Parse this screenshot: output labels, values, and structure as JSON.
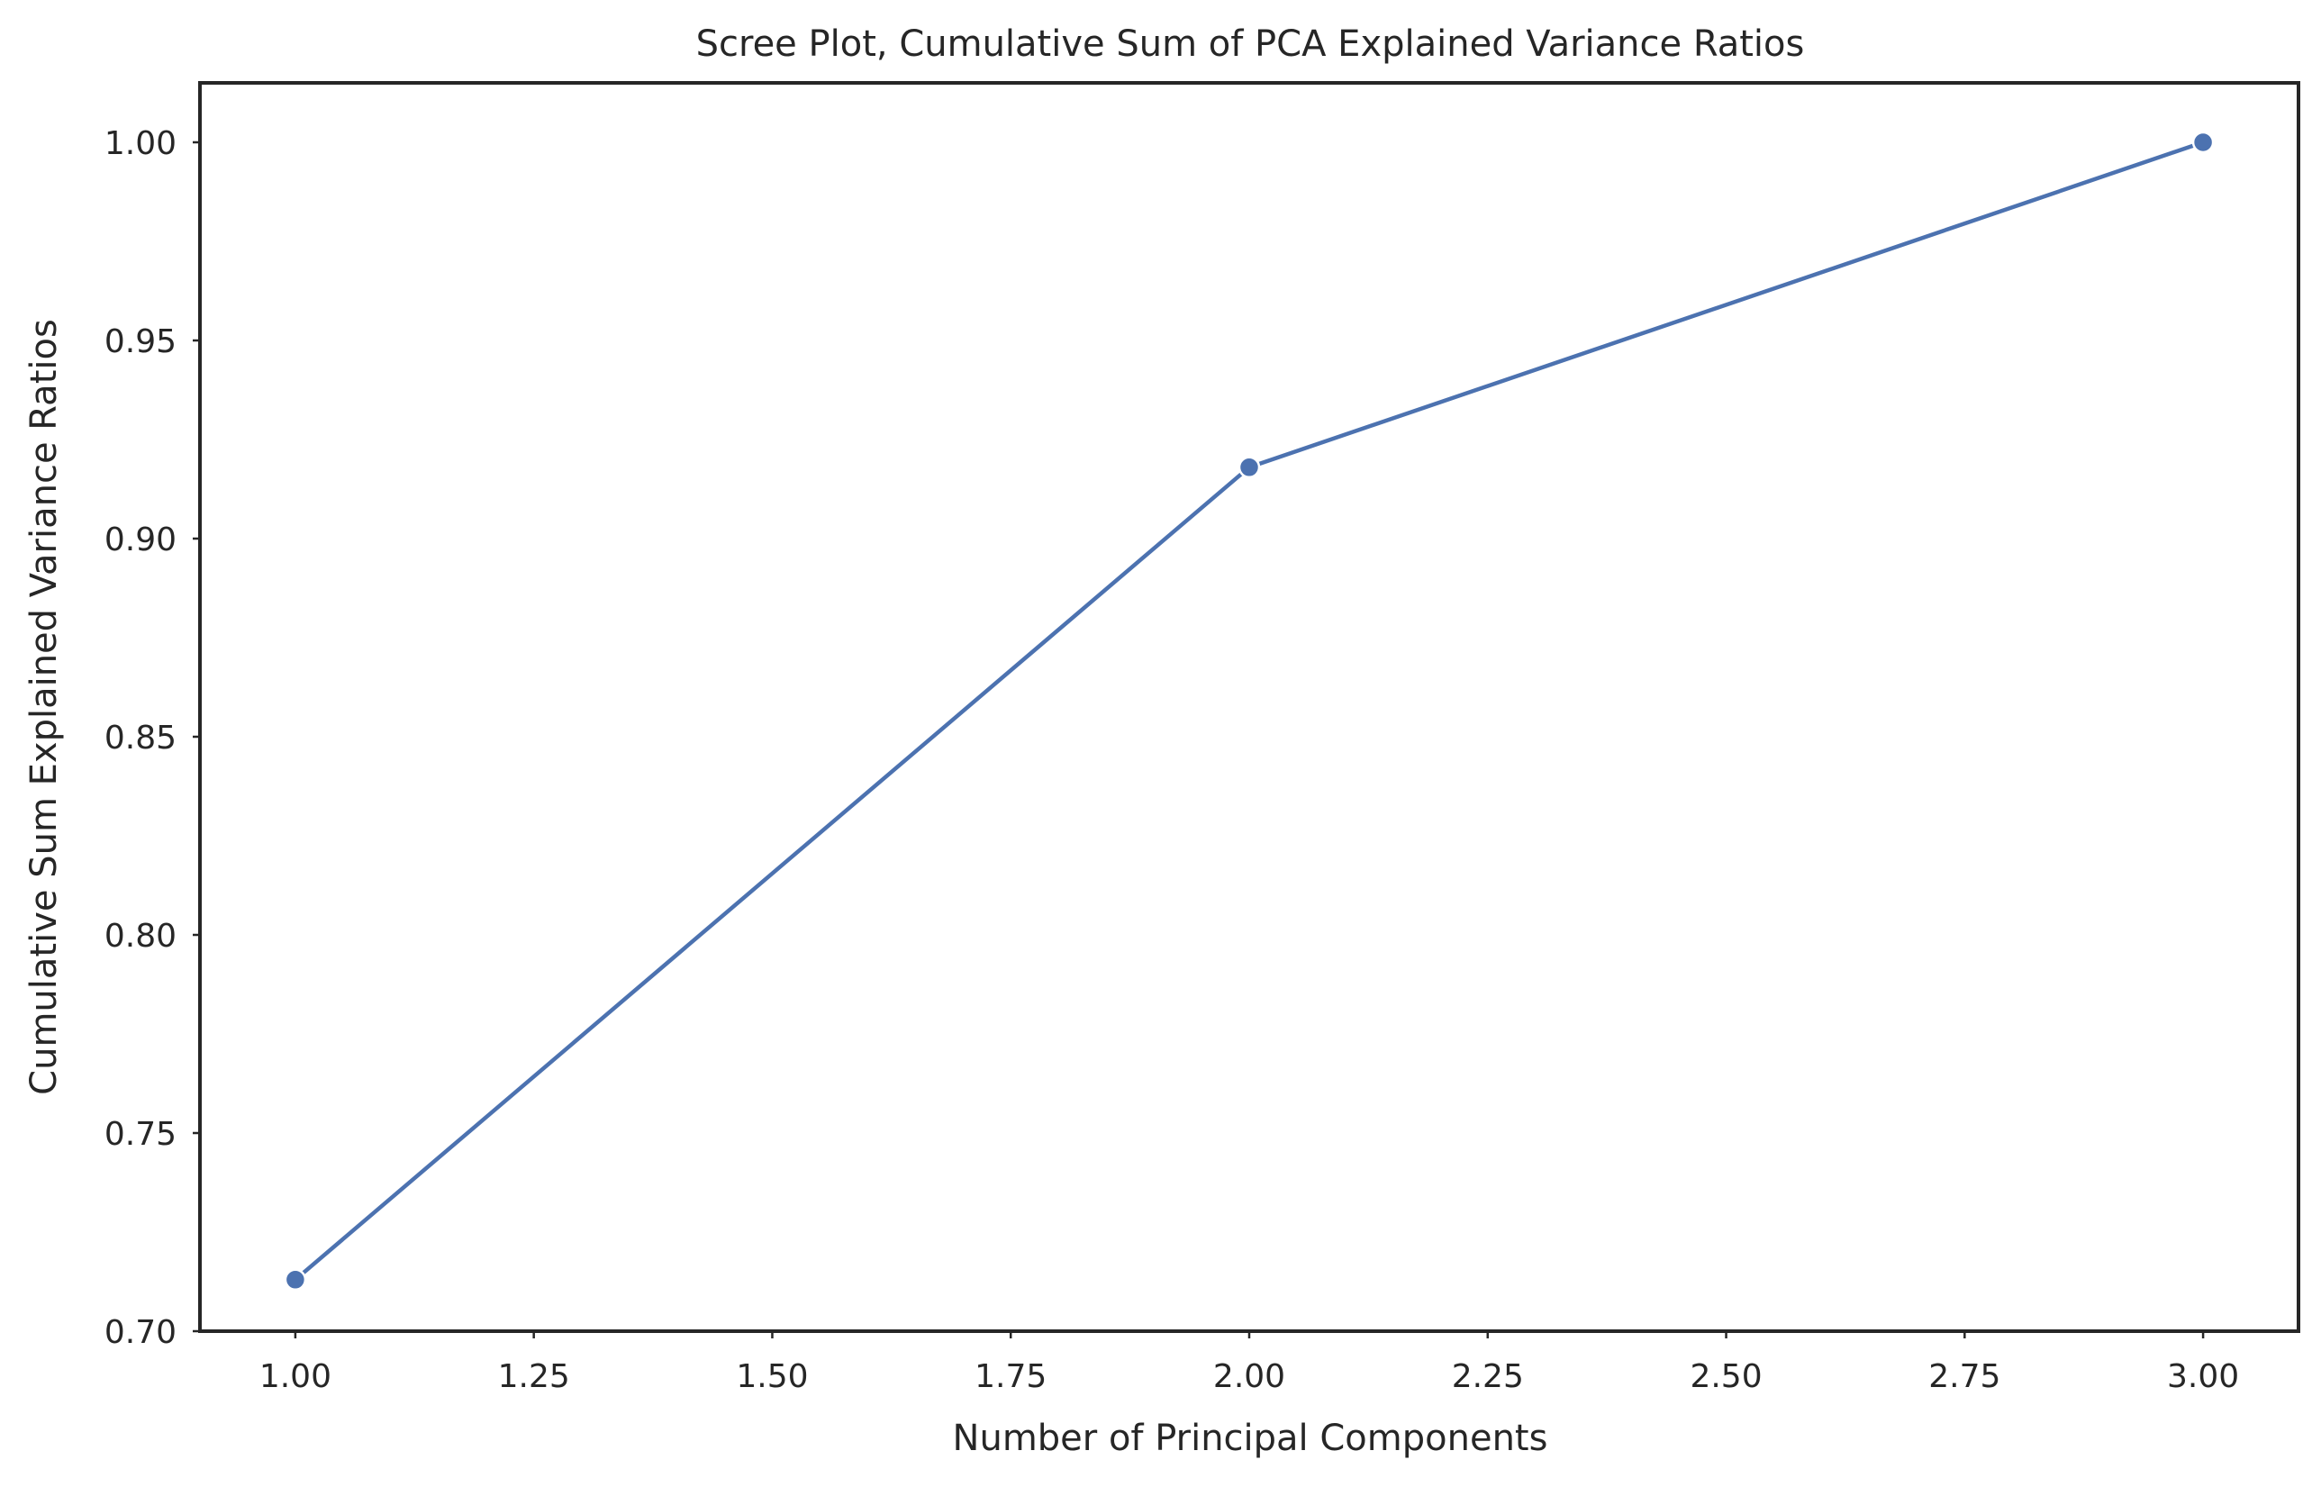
{
  "chart_data": {
    "type": "line",
    "title": "Scree Plot, Cumulative Sum of PCA Explained Variance Ratios",
    "xlabel": "Number of Principal Components",
    "ylabel": "Cumulative Sum Explained Variance Ratios",
    "xlim": [
      0.9,
      3.1
    ],
    "ylim": [
      0.7,
      1.015
    ],
    "xticks": [
      "1.00",
      "1.25",
      "1.50",
      "1.75",
      "2.00",
      "2.25",
      "2.50",
      "2.75",
      "3.00"
    ],
    "yticks": [
      "0.70",
      "0.75",
      "0.80",
      "0.85",
      "0.90",
      "0.95",
      "1.00"
    ],
    "grid": false,
    "series": [
      {
        "x": [
          1,
          2,
          3
        ],
        "values": [
          0.713,
          0.918,
          1.0
        ],
        "color": "#4c72b0",
        "marker": "circle"
      }
    ]
  }
}
